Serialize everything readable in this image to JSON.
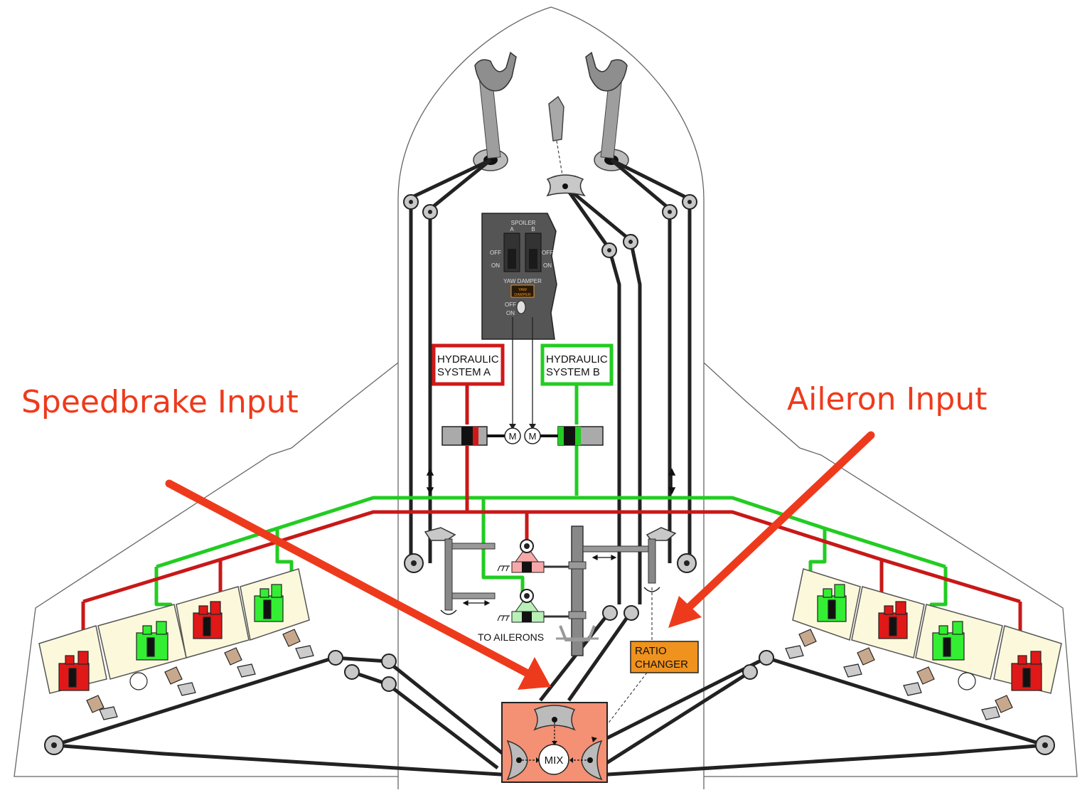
{
  "annotations": {
    "speedbrake_input": "Speedbrake Input",
    "aileron_input": "Aileron Input"
  },
  "hydraulic_systems": {
    "a": {
      "line1": "HYDRAULIC",
      "line2": "SYSTEM A",
      "color": "#d01818"
    },
    "b": {
      "line1": "HYDRAULIC",
      "line2": "SYSTEM B",
      "color": "#22cc22"
    }
  },
  "panel": {
    "spoiler": "SPOILER",
    "switch_a": "A",
    "switch_b": "B",
    "off": "OFF",
    "on": "ON",
    "yaw_damper": "YAW DAMPER",
    "yaw_light_1": "YAW",
    "yaw_light_2": "DAMPER",
    "yaw_off": "OFF",
    "yaw_on": "ON"
  },
  "motor_label": "M",
  "to_ailerons": "TO AILERONS",
  "ratio_changer": {
    "line1": "RATIO",
    "line2": "CHANGER",
    "color": "#f0921e"
  },
  "mix": {
    "label": "MIX",
    "color": "#f49074"
  },
  "colors": {
    "callout": "#ee3a1c",
    "hyd_a": "#d01818",
    "hyd_b": "#22cc22",
    "cable": "#222222",
    "spoiler_bay": "#fbf8dc"
  }
}
